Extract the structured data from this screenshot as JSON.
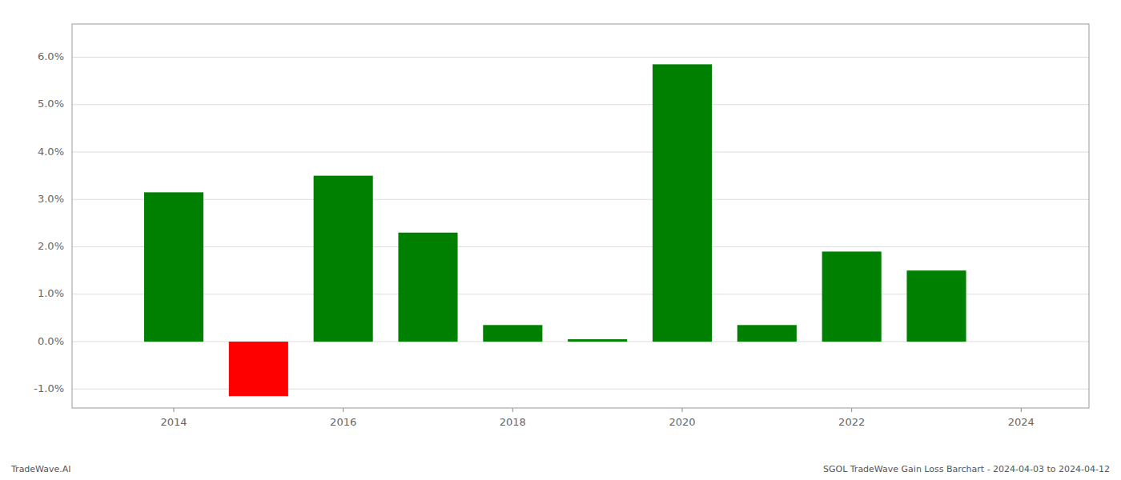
{
  "chart_data": {
    "type": "bar",
    "x": [
      2014,
      2015,
      2016,
      2017,
      2018,
      2019,
      2020,
      2021,
      2022,
      2023
    ],
    "values": [
      0.0315,
      -0.0115,
      0.035,
      0.023,
      0.0035,
      0.0005,
      0.0585,
      0.0035,
      0.019,
      0.015
    ],
    "colors": [
      "#008000",
      "#ff0000",
      "#008000",
      "#008000",
      "#008000",
      "#008000",
      "#008000",
      "#008000",
      "#008000",
      "#008000"
    ],
    "xlim": [
      2012.8,
      2024.8
    ],
    "xticks": [
      2014,
      2016,
      2018,
      2020,
      2022,
      2024
    ],
    "ylim": [
      -0.014,
      0.067
    ],
    "yticks": [
      {
        "value": -0.01,
        "label": "-1.0%"
      },
      {
        "value": 0.0,
        "label": "0.0%"
      },
      {
        "value": 0.01,
        "label": "1.0%"
      },
      {
        "value": 0.02,
        "label": "2.0%"
      },
      {
        "value": 0.03,
        "label": "3.0%"
      },
      {
        "value": 0.04,
        "label": "4.0%"
      },
      {
        "value": 0.05,
        "label": "5.0%"
      },
      {
        "value": 0.06,
        "label": "6.0%"
      }
    ],
    "grid": true,
    "annotations": [
      "TradeWave.AI",
      "SGOL TradeWave Gain Loss Barchart - 2024-04-03 to 2024-04-12"
    ]
  }
}
